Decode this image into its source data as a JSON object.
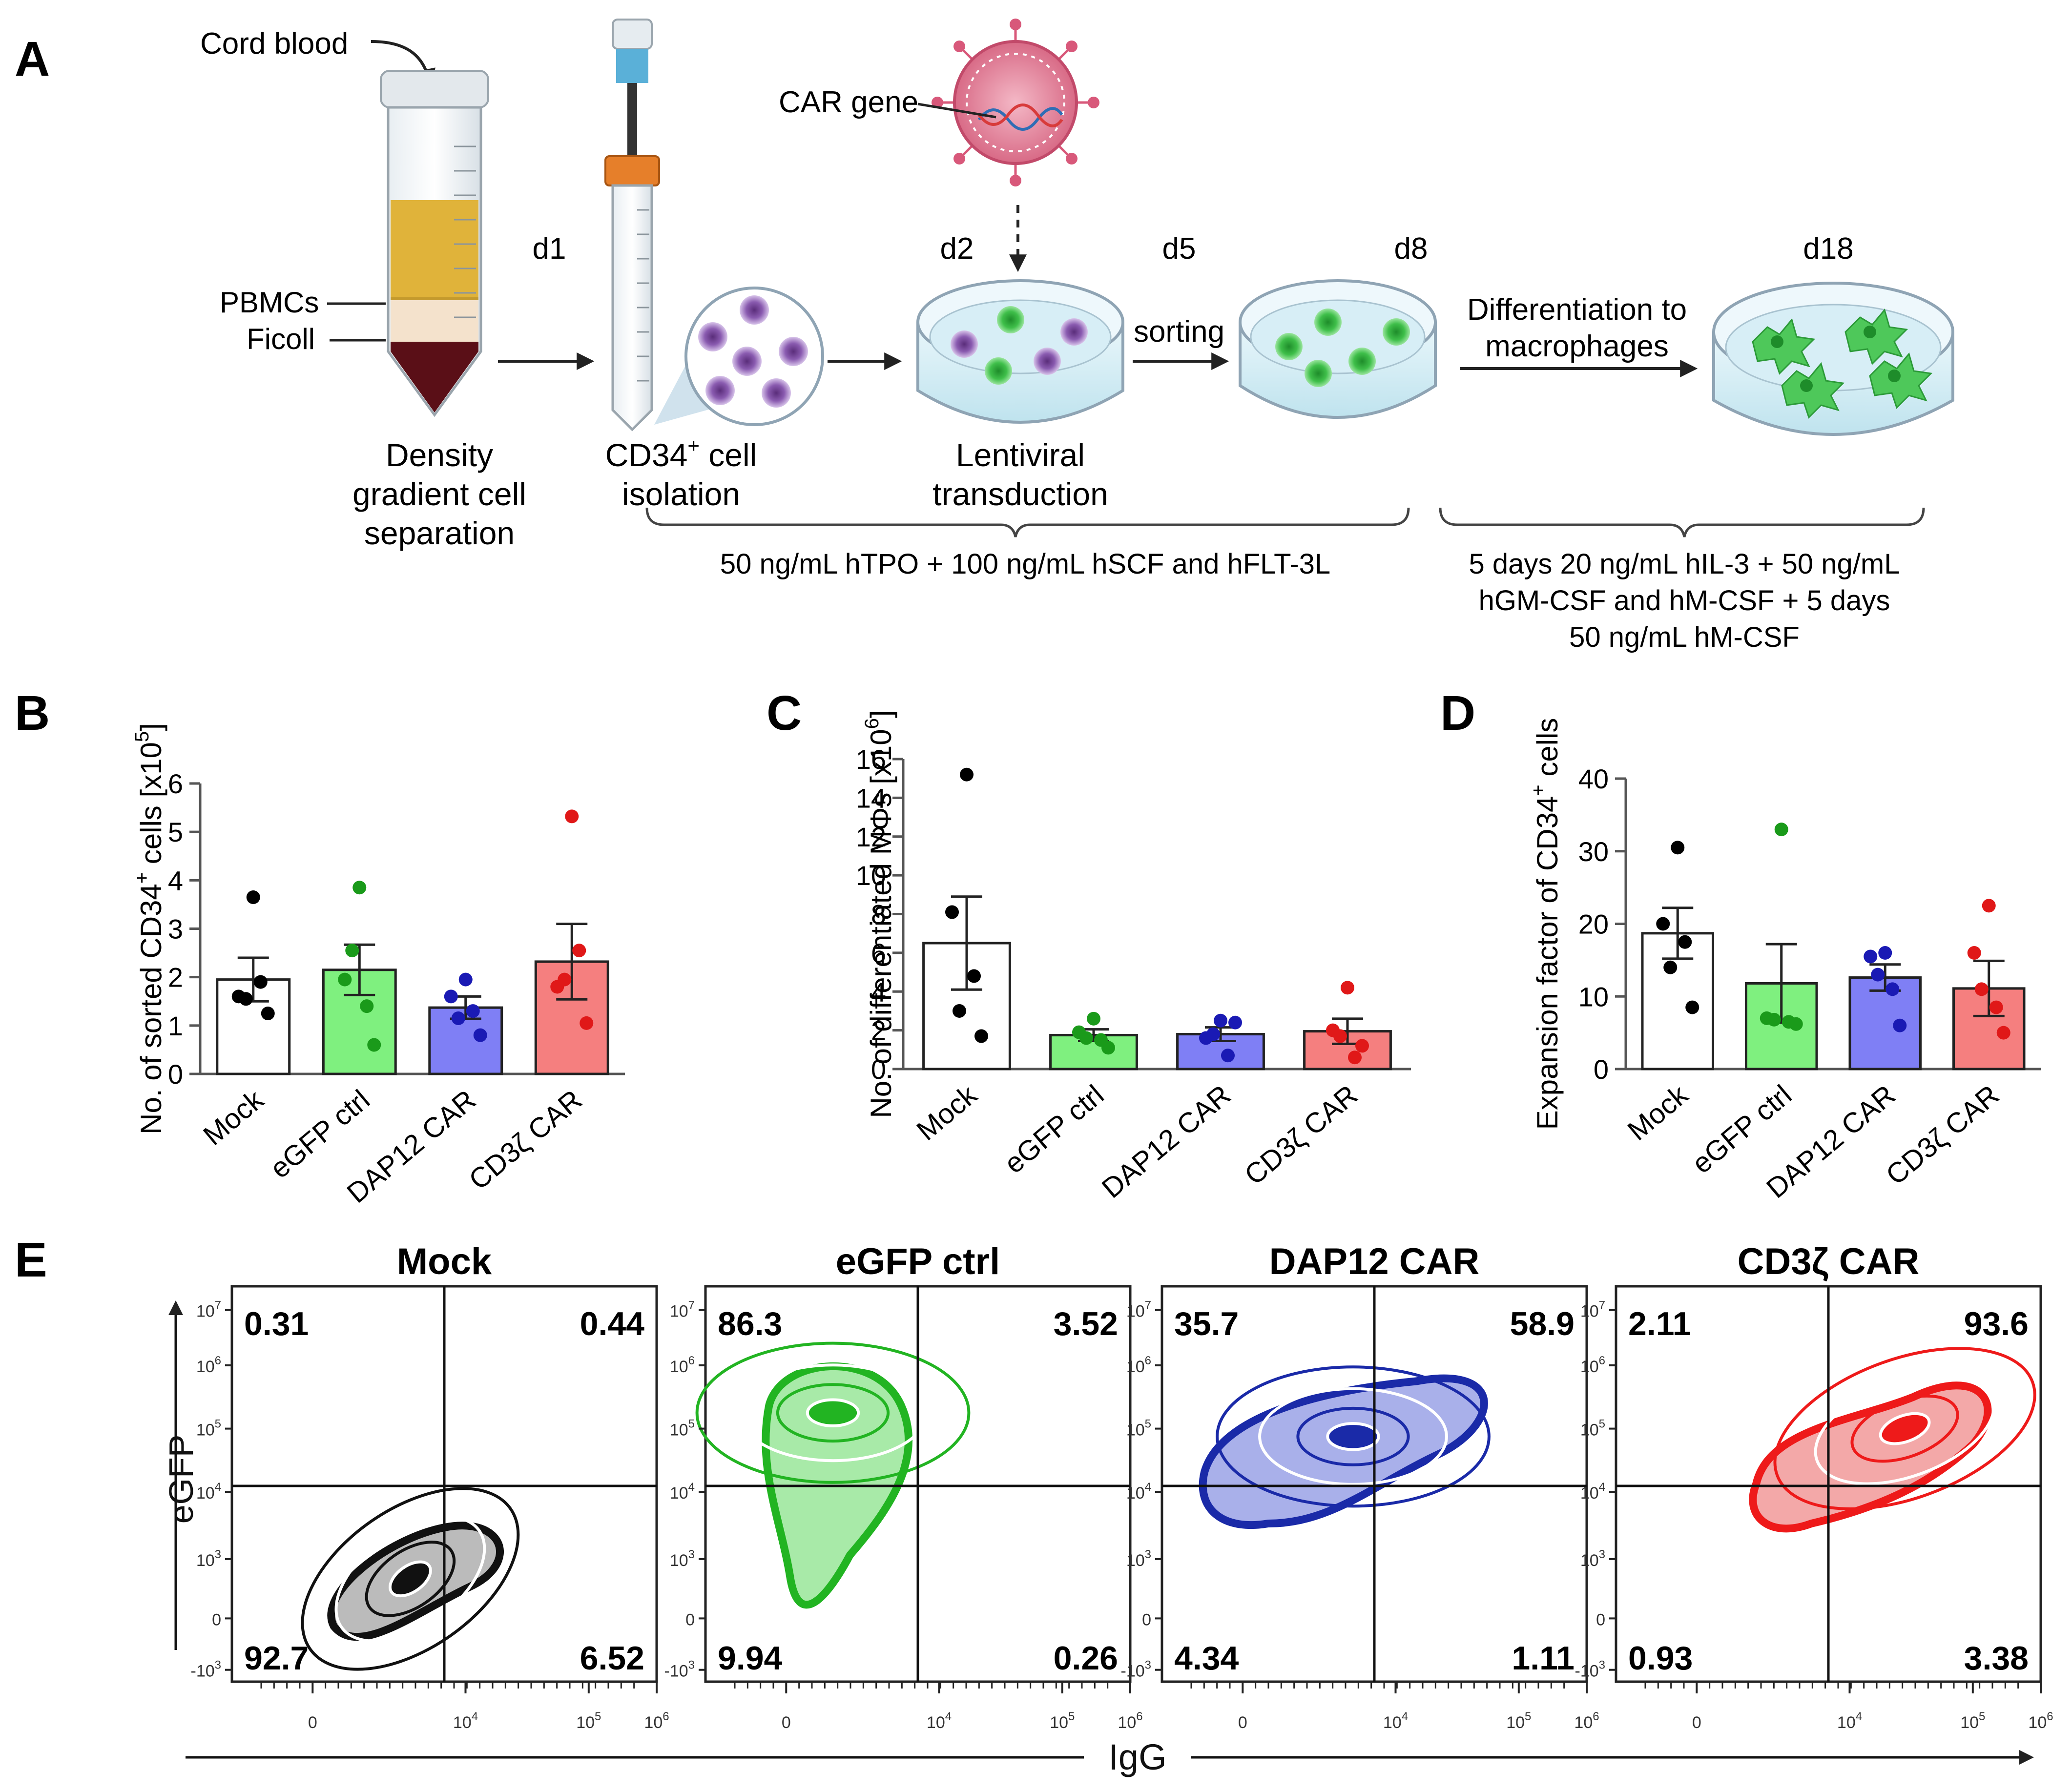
{
  "panels": {
    "A": "A",
    "B": "B",
    "C": "C",
    "D": "D",
    "E": "E"
  },
  "schematic": {
    "cord_blood": "Cord blood",
    "pbmcs": "PBMCs",
    "ficoll": "Ficoll",
    "density": [
      "Density",
      "gradient cell",
      "separation"
    ],
    "d1": "d1",
    "cd34_prefix": "CD34",
    "cd34_sup": "+",
    "cd34_line1_rest": " cell",
    "cd34_line2": "isolation",
    "car_gene": "CAR gene",
    "d2": "d2",
    "lentiviral": [
      "Lentiviral",
      "transduction"
    ],
    "d5": "d5",
    "sorting": "sorting",
    "d8": "d8",
    "differentiation": [
      "Differentiation to",
      "macrophages"
    ],
    "d18": "d18",
    "culture1": "50 ng/mL hTPO + 100 ng/mL hSCF and hFLT-3L",
    "culture2": [
      "5 days 20 ng/mL hIL-3 + 50 ng/mL",
      "hGM-CSF and hM-CSF + 5 days",
      "50 ng/mL hM-CSF"
    ]
  },
  "colors": {
    "mock": "#ffffff",
    "egfp": "#7ff07f",
    "dap12": "#7f7ff5",
    "cd3z": "#f57f7f",
    "dot_mock": "#000000",
    "dot_egfp": "#1a9a1a",
    "dot_dap12": "#1a1ab4",
    "dot_cd3z": "#e01818"
  },
  "chart_data": [
    {
      "id": "B",
      "type": "bar",
      "ylabel": "No. of sorted CD34+ cells [x10^5]",
      "ylabel_parts": {
        "pre": "No. of sorted CD34",
        "sup1": "+",
        "mid": " cells [x10",
        "sup2": "5",
        "post": "]"
      },
      "ylim": [
        0,
        6
      ],
      "yticks": [
        0,
        1,
        2,
        3,
        4,
        5,
        6
      ],
      "categories": [
        "Mock",
        "eGFP ctrl",
        "DAP12 CAR",
        "CD3ζ CAR"
      ],
      "values": [
        1.95,
        2.15,
        1.37,
        2.32
      ],
      "sem": [
        0.45,
        0.52,
        0.23,
        0.78
      ],
      "points": [
        [
          3.65,
          1.6,
          1.9,
          1.25,
          1.55
        ],
        [
          3.85,
          1.95,
          1.4,
          0.6,
          2.55
        ],
        [
          1.95,
          1.6,
          1.3,
          0.8,
          1.15
        ],
        [
          5.32,
          1.8,
          2.55,
          1.05,
          1.95
        ]
      ]
    },
    {
      "id": "C",
      "type": "bar",
      "ylabel": "No. of differentiated MΦs [x10^6]",
      "ylabel_parts": {
        "pre": "No. of differentiated MΦs [x10",
        "sup1": "6",
        "mid": "]",
        "sup2": "",
        "post": ""
      },
      "ylim": [
        0,
        16
      ],
      "yticks": [
        0,
        2,
        4,
        6,
        8,
        10,
        12,
        14,
        16
      ],
      "categories": [
        "Mock",
        "eGFP ctrl",
        "DAP12 CAR",
        "CD3ζ CAR"
      ],
      "values": [
        6.5,
        1.75,
        1.8,
        1.95
      ],
      "sem": [
        2.4,
        0.3,
        0.35,
        0.65
      ],
      "points": [
        [
          15.2,
          8.1,
          4.8,
          1.7,
          3.0
        ],
        [
          2.6,
          1.9,
          1.5,
          1.1,
          1.6
        ],
        [
          2.5,
          1.6,
          0.7,
          2.4,
          1.8
        ],
        [
          4.2,
          2.0,
          0.6,
          1.2,
          1.7
        ]
      ]
    },
    {
      "id": "D",
      "type": "bar",
      "ylabel": "Expansion factor of CD34+ cells",
      "ylabel_parts": {
        "pre": "Expansion factor of CD34",
        "sup1": "+",
        "mid": " cells",
        "sup2": "",
        "post": ""
      },
      "ylim": [
        0,
        40
      ],
      "yticks": [
        0,
        10,
        20,
        30,
        40
      ],
      "categories": [
        "Mock",
        "eGFP ctrl",
        "DAP12 CAR",
        "CD3ζ CAR"
      ],
      "values": [
        18.7,
        11.8,
        12.6,
        11.1
      ],
      "sem": [
        3.5,
        5.4,
        1.8,
        3.8
      ],
      "points": [
        [
          30.5,
          20.0,
          17.5,
          8.5,
          14.0
        ],
        [
          33.0,
          7.0,
          6.5,
          6.2,
          6.8
        ],
        [
          16.0,
          15.5,
          11.0,
          6.0,
          13.0
        ],
        [
          22.5,
          16.0,
          8.5,
          5.0,
          11.0
        ]
      ]
    },
    {
      "id": "E",
      "type": "scatter",
      "xlabel": "IgG",
      "ylabel": "eGFP",
      "y_ticks": [
        {
          "b": "-10",
          "e": "3"
        },
        {
          "b": "0",
          "e": ""
        },
        {
          "b": "10",
          "e": "3"
        },
        {
          "b": "10",
          "e": "4"
        },
        {
          "b": "10",
          "e": "5"
        },
        {
          "b": "10",
          "e": "6"
        },
        {
          "b": "10",
          "e": "7"
        }
      ],
      "x_ticks": [
        {
          "b": "0",
          "e": ""
        },
        {
          "b": "10",
          "e": "4"
        },
        {
          "b": "10",
          "e": "5"
        },
        {
          "b": "10",
          "e": "6"
        }
      ],
      "plots": [
        {
          "title": "Mock",
          "quadrants": {
            "upper_left": "0.31",
            "upper_right": "0.44",
            "lower_left": "92.7",
            "lower_right": "6.52"
          }
        },
        {
          "title": "eGFP ctrl",
          "quadrants": {
            "upper_left": "86.3",
            "upper_right": "3.52",
            "lower_left": "9.94",
            "lower_right": "0.26"
          }
        },
        {
          "title": "DAP12 CAR",
          "quadrants": {
            "upper_left": "35.7",
            "upper_right": "58.9",
            "lower_left": "4.34",
            "lower_right": "1.11"
          }
        },
        {
          "title": "CD3ζ CAR",
          "quadrants": {
            "upper_left": "2.11",
            "upper_right": "93.6",
            "lower_left": "0.93",
            "lower_right": "3.38"
          }
        }
      ]
    }
  ]
}
